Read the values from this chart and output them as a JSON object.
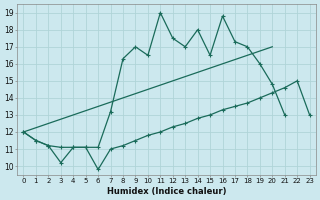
{
  "xlabel": "Humidex (Indice chaleur)",
  "bg_color": "#cce8ee",
  "grid_color": "#b0d4d8",
  "line_color": "#1a6b5a",
  "xlim": [
    -0.5,
    23.5
  ],
  "ylim": [
    9.5,
    19.5
  ],
  "xticks": [
    0,
    1,
    2,
    3,
    4,
    5,
    6,
    7,
    8,
    9,
    10,
    11,
    12,
    13,
    14,
    15,
    16,
    17,
    18,
    19,
    20,
    21,
    22,
    23
  ],
  "yticks": [
    10,
    11,
    12,
    13,
    14,
    15,
    16,
    17,
    18,
    19
  ],
  "line1_x": [
    0,
    1,
    2,
    3,
    4,
    5,
    6,
    7,
    8,
    9,
    10,
    11,
    12,
    13,
    14,
    15,
    16,
    17,
    18,
    19,
    20,
    21,
    22
  ],
  "line1_y": [
    12.0,
    11.5,
    11.2,
    11.1,
    11.1,
    11.1,
    11.1,
    13.2,
    16.3,
    17.0,
    16.5,
    19.0,
    17.5,
    17.0,
    18.0,
    16.5,
    18.8,
    17.3,
    17.0,
    16.0,
    14.8,
    13.0,
    null
  ],
  "line2_x": [
    0,
    20
  ],
  "line2_y": [
    12.0,
    17.0
  ],
  "line3_x": [
    0,
    1,
    2,
    3,
    4,
    5,
    6,
    7,
    8,
    9,
    10,
    11,
    12,
    13,
    14,
    15,
    16,
    17,
    18,
    19,
    20,
    21,
    22,
    23
  ],
  "line3_y": [
    12.0,
    11.5,
    11.2,
    10.2,
    11.1,
    11.1,
    9.8,
    11.0,
    11.2,
    11.5,
    11.8,
    12.0,
    12.3,
    12.5,
    12.8,
    13.0,
    13.3,
    13.5,
    13.7,
    14.0,
    14.3,
    14.6,
    15.0,
    13.0
  ]
}
